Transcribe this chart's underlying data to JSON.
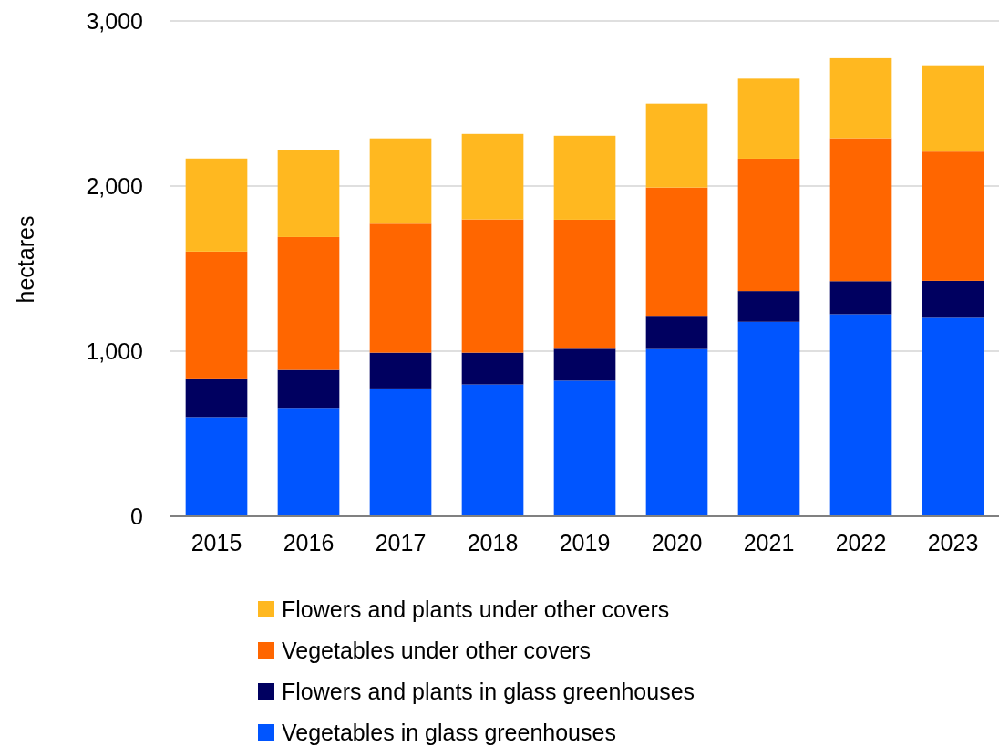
{
  "chart_data": {
    "type": "bar",
    "stacked": true,
    "ylabel": "hectares",
    "categories": [
      "2015",
      "2016",
      "2017",
      "2018",
      "2019",
      "2020",
      "2021",
      "2022",
      "2023"
    ],
    "series": [
      {
        "name": "Vegetables in glass greenhouses",
        "color": "#0055ff",
        "values": [
          600,
          656,
          774,
          798,
          821,
          1013,
          1178,
          1224,
          1202
        ]
      },
      {
        "name": "Flowers and plants in glass greenhouses",
        "color": "#000060",
        "values": [
          235,
          230,
          217,
          193,
          194,
          196,
          186,
          200,
          224
        ]
      },
      {
        "name": "Vegetables under other covers",
        "color": "#ff6600",
        "values": [
          768,
          805,
          781,
          807,
          781,
          782,
          802,
          866,
          783
        ]
      },
      {
        "name": "Flowers and plants under other covers",
        "color": "#ffb820",
        "values": [
          564,
          528,
          517,
          518,
          509,
          508,
          484,
          484,
          522
        ]
      }
    ],
    "ylim": [
      0,
      3000
    ],
    "yticks": [
      0,
      {
        "value": 1000,
        "label": "1,000"
      },
      {
        "value": 2000,
        "label": "2,000"
      },
      {
        "value": 3000,
        "label": "3,000"
      }
    ],
    "grid": "y",
    "legend": "bottom"
  }
}
